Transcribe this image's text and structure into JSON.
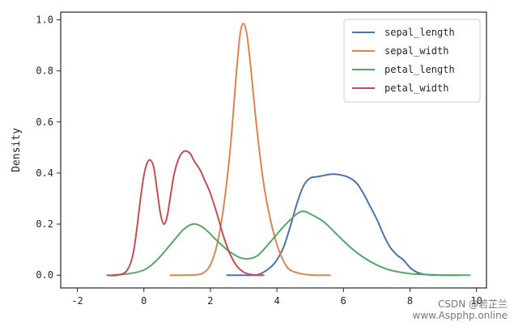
{
  "chart_data": {
    "type": "line",
    "title": "",
    "xlabel": "",
    "ylabel": "Density",
    "xlim": [
      -2.5,
      10.3
    ],
    "ylim": [
      -0.05,
      1.03
    ],
    "x_ticks": [
      -2,
      0,
      2,
      4,
      6,
      8,
      10
    ],
    "y_ticks": [
      0.0,
      0.2,
      0.4,
      0.6,
      0.8,
      1.0
    ],
    "x_tick_labels": [
      "-2",
      "0",
      "2",
      "4",
      "6",
      "8",
      "10"
    ],
    "y_tick_labels": [
      "0.0",
      "0.2",
      "0.4",
      "0.6",
      "0.8",
      "1.0"
    ],
    "grid": false,
    "legend_position": "top-right",
    "series": [
      {
        "name": "sepal_length",
        "color": "#4c72b0",
        "x": [
          2.5,
          3.0,
          3.3,
          3.5,
          3.8,
          4.0,
          4.2,
          4.4,
          4.6,
          4.8,
          5.0,
          5.2,
          5.4,
          5.6,
          5.8,
          6.0,
          6.2,
          6.4,
          6.6,
          6.8,
          7.0,
          7.2,
          7.4,
          7.6,
          7.8,
          8.0,
          8.2,
          8.4,
          8.6,
          9.0,
          9.5
        ],
        "y": [
          0.0,
          0.0,
          0.0,
          0.005,
          0.03,
          0.06,
          0.11,
          0.19,
          0.28,
          0.35,
          0.38,
          0.385,
          0.39,
          0.395,
          0.395,
          0.39,
          0.38,
          0.36,
          0.32,
          0.27,
          0.22,
          0.16,
          0.11,
          0.08,
          0.06,
          0.03,
          0.012,
          0.004,
          0.001,
          0.0,
          0.0
        ]
      },
      {
        "name": "sepal_width",
        "color": "#dd8452",
        "x": [
          0.8,
          1.2,
          1.6,
          1.8,
          2.0,
          2.2,
          2.4,
          2.6,
          2.8,
          2.9,
          3.0,
          3.1,
          3.2,
          3.4,
          3.6,
          3.8,
          4.0,
          4.2,
          4.4,
          4.8,
          5.2,
          5.6
        ],
        "y": [
          0.0,
          0.0,
          0.002,
          0.01,
          0.04,
          0.12,
          0.27,
          0.5,
          0.82,
          0.95,
          0.985,
          0.94,
          0.83,
          0.57,
          0.36,
          0.22,
          0.12,
          0.055,
          0.02,
          0.004,
          0.0,
          0.0
        ]
      },
      {
        "name": "petal_length",
        "color": "#55a868",
        "x": [
          -1.0,
          -0.5,
          0.0,
          0.4,
          0.8,
          1.2,
          1.5,
          1.8,
          2.2,
          2.6,
          3.0,
          3.4,
          3.8,
          4.2,
          4.6,
          4.8,
          5.0,
          5.4,
          5.8,
          6.2,
          6.6,
          7.0,
          7.4,
          8.0,
          8.6,
          9.2,
          9.8
        ],
        "y": [
          0.0,
          0.005,
          0.02,
          0.06,
          0.12,
          0.18,
          0.2,
          0.185,
          0.135,
          0.09,
          0.065,
          0.075,
          0.13,
          0.19,
          0.24,
          0.25,
          0.24,
          0.21,
          0.16,
          0.11,
          0.07,
          0.04,
          0.02,
          0.006,
          0.002,
          0.0,
          0.0
        ]
      },
      {
        "name": "petal_width",
        "color": "#c44e52",
        "x": [
          -1.1,
          -0.8,
          -0.5,
          -0.3,
          -0.1,
          0.0,
          0.1,
          0.2,
          0.3,
          0.4,
          0.5,
          0.6,
          0.7,
          0.8,
          0.9,
          1.0,
          1.1,
          1.2,
          1.3,
          1.4,
          1.5,
          1.6,
          1.7,
          1.8,
          2.0,
          2.2,
          2.4,
          2.6,
          2.8,
          3.0,
          3.2,
          3.4,
          3.6
        ],
        "y": [
          0.0,
          0.0,
          0.02,
          0.1,
          0.3,
          0.39,
          0.44,
          0.45,
          0.42,
          0.33,
          0.24,
          0.2,
          0.23,
          0.31,
          0.39,
          0.44,
          0.47,
          0.485,
          0.485,
          0.475,
          0.45,
          0.43,
          0.41,
          0.38,
          0.32,
          0.24,
          0.15,
          0.08,
          0.035,
          0.012,
          0.003,
          0.0,
          0.0
        ]
      }
    ]
  },
  "watermark": {
    "line1": "CSDN @若芷兰",
    "line2": "www.Aspphp.online"
  }
}
